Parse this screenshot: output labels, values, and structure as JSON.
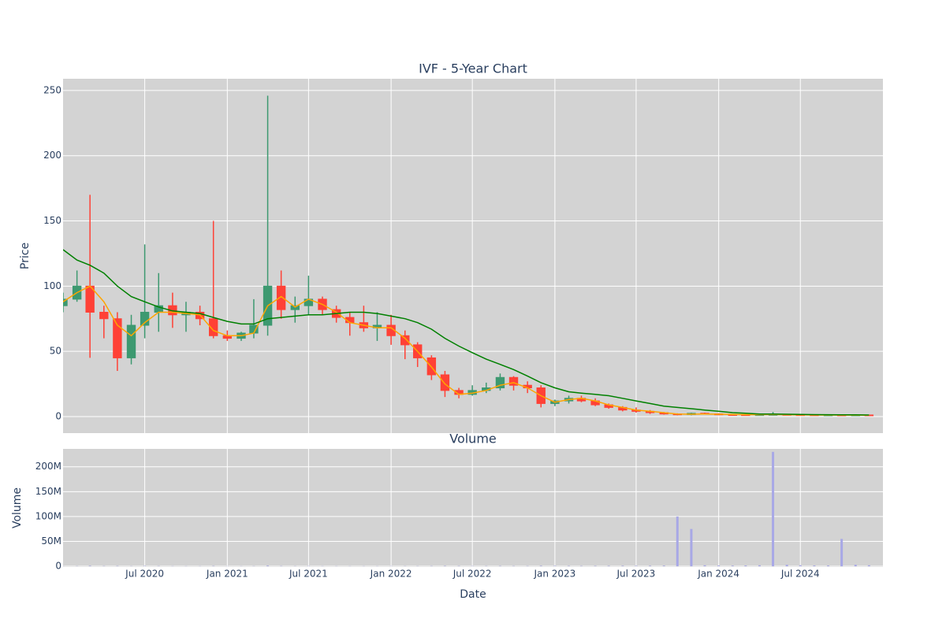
{
  "chart_data": [
    {
      "type": "candlestick",
      "title": "IVF - 5-Year Chart",
      "y_label": "Price",
      "x": [
        "2020-01",
        "2020-02",
        "2020-03",
        "2020-04",
        "2020-05",
        "2020-06",
        "2020-07",
        "2020-08",
        "2020-09",
        "2020-10",
        "2020-11",
        "2020-12",
        "2021-01",
        "2021-02",
        "2021-03",
        "2021-04",
        "2021-05",
        "2021-06",
        "2021-07",
        "2021-08",
        "2021-09",
        "2021-10",
        "2021-11",
        "2021-12",
        "2022-01",
        "2022-02",
        "2022-03",
        "2022-04",
        "2022-05",
        "2022-06",
        "2022-07",
        "2022-08",
        "2022-09",
        "2022-10",
        "2022-11",
        "2022-12",
        "2023-01",
        "2023-02",
        "2023-03",
        "2023-04",
        "2023-05",
        "2023-06",
        "2023-07",
        "2023-08",
        "2023-09",
        "2023-10",
        "2023-11",
        "2023-12",
        "2024-01",
        "2024-02",
        "2024-03",
        "2024-04",
        "2024-05",
        "2024-06",
        "2024-07",
        "2024-08",
        "2024-09",
        "2024-10",
        "2024-11",
        "2024-12"
      ],
      "open": [
        85,
        90,
        100,
        80,
        75,
        45,
        70,
        80,
        85,
        78,
        80,
        75,
        62,
        60,
        64,
        70,
        100,
        82,
        85,
        90,
        82,
        76,
        72,
        68,
        70,
        62,
        55,
        45,
        32,
        20,
        17,
        20,
        22,
        30,
        24,
        22,
        10,
        12,
        14,
        12,
        9,
        7,
        5,
        4,
        3,
        2,
        1.5,
        2.5,
        2,
        1.5,
        1.4,
        1.3,
        1.4,
        1.6,
        1.4,
        1.3,
        1.2,
        1.2,
        1.1,
        1.2
      ],
      "high": [
        95,
        112,
        170,
        85,
        80,
        78,
        132,
        110,
        95,
        88,
        85,
        150,
        66,
        65,
        90,
        246,
        112,
        92,
        108,
        92,
        85,
        80,
        85,
        80,
        78,
        66,
        57,
        47,
        35,
        22,
        24,
        26,
        33,
        31,
        27,
        24,
        13,
        16,
        16,
        14,
        10,
        8,
        7,
        5,
        3.5,
        2.5,
        3,
        3,
        2.5,
        2,
        1.8,
        1.8,
        3.5,
        2,
        1.7,
        1.5,
        1.4,
        1.4,
        1.5,
        1.4
      ],
      "low": [
        80,
        88,
        45,
        60,
        35,
        40,
        60,
        65,
        68,
        65,
        70,
        60,
        58,
        58,
        60,
        62,
        75,
        72,
        78,
        78,
        72,
        62,
        65,
        58,
        55,
        44,
        38,
        28,
        15,
        14,
        16,
        18,
        20,
        20,
        18,
        7,
        8,
        10,
        11,
        8,
        6,
        4,
        3,
        2,
        1.5,
        1,
        1,
        1.5,
        1,
        1.1,
        1.1,
        1.1,
        1.2,
        1.2,
        1.1,
        1,
        1,
        0.9,
        0.9,
        1
      ],
      "close": [
        90,
        100,
        80,
        75,
        45,
        70,
        80,
        85,
        78,
        80,
        75,
        62,
        60,
        64,
        70,
        100,
        82,
        85,
        90,
        82,
        76,
        72,
        68,
        70,
        62,
        55,
        45,
        32,
        20,
        17,
        20,
        22,
        30,
        24,
        22,
        10,
        12,
        14,
        12,
        9,
        7,
        5,
        4,
        3,
        2,
        1.5,
        2.5,
        2,
        1.5,
        1.4,
        1.3,
        1.4,
        1.6,
        1.4,
        1.3,
        1.2,
        1.2,
        1.1,
        1.2,
        1.1
      ],
      "increasing_color": "#3d9970",
      "decreasing_color": "#ff4136",
      "series": [
        {
          "color": "orange",
          "values": [
            88,
            95,
            100,
            88,
            70,
            62,
            72,
            80,
            80,
            79,
            78,
            66,
            62,
            62,
            64,
            85,
            92,
            84,
            90,
            86,
            80,
            72,
            70,
            68,
            68,
            60,
            50,
            38,
            25,
            17,
            18,
            20,
            24,
            26,
            22,
            16,
            11,
            13,
            14,
            12,
            9,
            7,
            5,
            4,
            3,
            2,
            1.8,
            2,
            1.8,
            1.6,
            1.5,
            1.5,
            1.6,
            1.4,
            1.3,
            1.2,
            1.2,
            1.1,
            1.1,
            1.0
          ]
        },
        {
          "color": "green",
          "values": [
            128,
            120,
            116,
            110,
            100,
            92,
            88,
            84,
            81,
            80,
            79,
            76,
            73,
            71,
            71,
            75,
            76,
            77,
            78,
            78,
            79,
            80,
            80,
            79,
            77,
            75,
            72,
            67,
            60,
            54,
            49,
            44,
            40,
            36,
            31,
            26,
            22,
            19,
            18,
            17,
            16,
            14,
            12,
            10,
            8,
            7,
            6,
            5,
            4,
            3,
            2.5,
            2,
            2,
            1.8,
            1.6,
            1.5,
            1.4,
            1.3,
            1.3,
            1.2
          ]
        }
      ],
      "xlim": [
        "2020-01",
        "2025-01"
      ],
      "ylim": [
        -12.7,
        259
      ],
      "yticks": [
        0,
        50,
        100,
        150,
        200,
        250
      ],
      "grid": true,
      "background": "#d3d3d3"
    },
    {
      "type": "bar",
      "title": "Volume",
      "y_label": "Volume",
      "x_label": "Date",
      "x": [
        "2020-01",
        "2020-02",
        "2020-03",
        "2020-04",
        "2020-05",
        "2020-06",
        "2020-07",
        "2020-08",
        "2020-09",
        "2020-10",
        "2020-11",
        "2020-12",
        "2021-01",
        "2021-02",
        "2021-03",
        "2021-04",
        "2021-05",
        "2021-06",
        "2021-07",
        "2021-08",
        "2021-09",
        "2021-10",
        "2021-11",
        "2021-12",
        "2022-01",
        "2022-02",
        "2022-03",
        "2022-04",
        "2022-05",
        "2022-06",
        "2022-07",
        "2022-08",
        "2022-09",
        "2022-10",
        "2022-11",
        "2022-12",
        "2023-01",
        "2023-02",
        "2023-03",
        "2023-04",
        "2023-05",
        "2023-06",
        "2023-07",
        "2023-08",
        "2023-09",
        "2023-10",
        "2023-11",
        "2023-12",
        "2024-01",
        "2024-02",
        "2024-03",
        "2024-04",
        "2024-05",
        "2024-06",
        "2024-07",
        "2024-08",
        "2024-09",
        "2024-10",
        "2024-11",
        "2024-12"
      ],
      "values": [
        300000,
        400000,
        900000,
        500000,
        600000,
        400000,
        700000,
        500000,
        300000,
        300000,
        300000,
        600000,
        300000,
        300000,
        400000,
        1200000,
        500000,
        400000,
        500000,
        300000,
        300000,
        300000,
        300000,
        300000,
        400000,
        400000,
        400000,
        500000,
        700000,
        600000,
        500000,
        500000,
        600000,
        500000,
        500000,
        900000,
        800000,
        700000,
        600000,
        700000,
        800000,
        900000,
        900000,
        1000000,
        1200000,
        100000000,
        75000000,
        2000000,
        1500000,
        1200000,
        1500000,
        2000000,
        230000000,
        3000000,
        2000000,
        1500000,
        1500000,
        55000000,
        3000000,
        2000000
      ],
      "color": "#a8a8e6",
      "xlim": [
        "2020-01",
        "2025-01"
      ],
      "ylim": [
        -1500000,
        236000000
      ],
      "yticks": [
        0,
        {
          "value": 50000000,
          "label": "50M"
        },
        {
          "value": 100000000,
          "label": "100M"
        },
        {
          "value": 150000000,
          "label": "150M"
        },
        {
          "value": 200000000,
          "label": "200M"
        }
      ],
      "xticks": [
        {
          "value": "2020-07",
          "label": "Jul 2020"
        },
        {
          "value": "2021-01",
          "label": "Jan 2021"
        },
        {
          "value": "2021-07",
          "label": "Jul 2021"
        },
        {
          "value": "2022-01",
          "label": "Jan 2022"
        },
        {
          "value": "2022-07",
          "label": "Jul 2022"
        },
        {
          "value": "2023-01",
          "label": "Jan 2023"
        },
        {
          "value": "2023-07",
          "label": "Jul 2023"
        },
        {
          "value": "2024-01",
          "label": "Jan 2024"
        },
        {
          "value": "2024-07",
          "label": "Jul 2024"
        }
      ],
      "grid": true,
      "background": "#d3d3d3"
    }
  ]
}
